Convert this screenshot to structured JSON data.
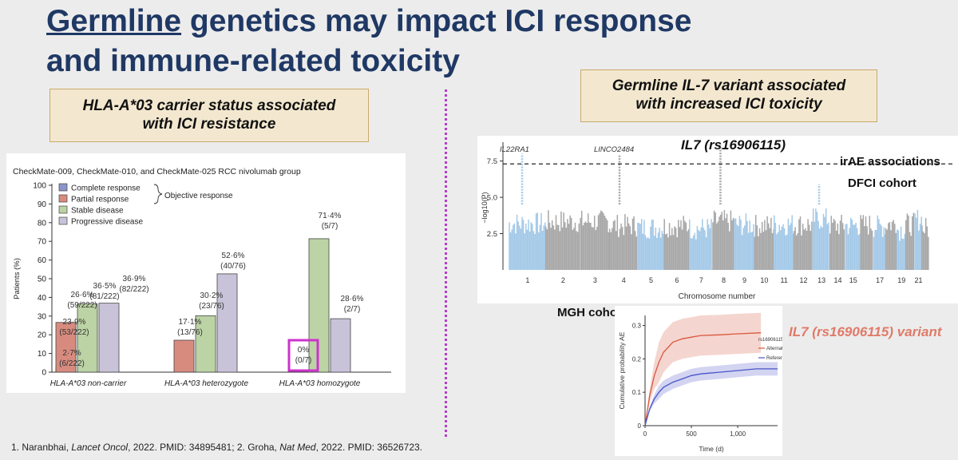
{
  "title": {
    "underlined": "Germline",
    "rest_line1": " genetics may impact ICI response",
    "line2": "and immune-related toxicity"
  },
  "left_callout": {
    "line1": "HLA-A*03 carrier status associated",
    "line2": "with ICI resistance"
  },
  "right_callout": {
    "line1": "Germline IL-7 variant associated",
    "line2": "with increased ICI toxicity"
  },
  "footnote": {
    "p1": "1. Naranbhai, ",
    "j1": "Lancet Oncol",
    "p2": ", 2022. PMID: 34895481; 2. Groha, ",
    "j2": "Nat Med",
    "p3": ", 2022. PMID: 36526723."
  },
  "right_labels": {
    "il7_title": "IL7 (rs16906115)",
    "irae": "irAE associations",
    "dfci": "DFCI cohort",
    "mgh": "MGH cohort",
    "variant": "IL7 (rs16906115) variant"
  },
  "colors": {
    "title": "#1f3864",
    "complete": "#8c95c9",
    "partial": "#d78b7f",
    "stable": "#bcd3a5",
    "progressive": "#c9c3da",
    "highlight": "#cc33cc",
    "manhattan_blue": "#a3c9e8",
    "manhattan_gray": "#a7a7a7",
    "alt": "#d9583f",
    "ref": "#4a55c8"
  },
  "chart_data": [
    {
      "type": "bar",
      "title": "CheckMate-009, CheckMate-010, and CheckMate-025 RCC nivolumab group",
      "ylabel": "Patients (%)",
      "ylim": [
        0,
        100
      ],
      "yticks": [
        "0",
        "10",
        "20",
        "30",
        "40",
        "50",
        "60",
        "70",
        "80",
        "90",
        "100"
      ],
      "categories": [
        "HLA-A*03 non-carrier",
        "HLA-A*03 heterozygote",
        "HLA-A*03 homozygote"
      ],
      "legend_group_label": "Objective response",
      "series": [
        {
          "name": "Complete response",
          "values": [
            2.7,
            0,
            0
          ],
          "labels": [
            [
              "2·7%",
              "(6/222)"
            ],
            [],
            []
          ]
        },
        {
          "name": "Partial response",
          "values": [
            26.6,
            17.1,
            0
          ],
          "labels": [
            [
              "26·6%",
              "(59/222)"
            ],
            [
              "17·1%",
              "(13/76)"
            ],
            [
              "0%",
              "(0/7)"
            ]
          ]
        },
        {
          "name": "Stable disease",
          "values": [
            36.5,
            30.2,
            71.4
          ],
          "labels": [
            [
              "36·5%",
              "(81/222)"
            ],
            [
              "30·2%",
              "(23/76)"
            ],
            [
              "71·4%",
              "(5/7)"
            ]
          ]
        },
        {
          "name": "Progressive disease",
          "values": [
            36.9,
            52.6,
            28.6
          ],
          "labels": [
            [
              "36·9%",
              "(82/222)"
            ],
            [
              "52·6%",
              "(40/76)"
            ],
            [
              "28·6%",
              "(2/7)"
            ]
          ]
        }
      ],
      "extra_label": [
        "23·9%",
        "(53/222)"
      ]
    },
    {
      "type": "scatter",
      "subtype": "manhattan",
      "ylabel": "−log10(P)",
      "xlabel": "Chromosome number",
      "yticks": [
        "2.5",
        "5.0",
        "7.5"
      ],
      "ylim": [
        0,
        8.8
      ],
      "chromosome_labels": [
        "1",
        "2",
        "3",
        "4",
        "5",
        "6",
        "7",
        "8",
        "9",
        "10",
        "11",
        "12",
        "13",
        "14",
        "15",
        "17",
        "19",
        "21"
      ],
      "threshold": 7.3,
      "annotations": [
        "IL22RA1",
        "LINCO2484"
      ],
      "peaks": [
        {
          "chromosome": 1,
          "value": 8.0
        },
        {
          "chromosome": 4,
          "value": 7.9
        },
        {
          "chromosome": 8,
          "value": 8.6
        },
        {
          "chromosome": 13,
          "value": 5.9
        }
      ]
    },
    {
      "type": "line",
      "subtype": "cumulative-incidence",
      "xlabel": "Time (d)",
      "ylabel": "Cumulative probability AE",
      "xticks": [
        "0",
        "500",
        "1,000"
      ],
      "yticks": [
        "0",
        "0.1",
        "0.2",
        "0.3"
      ],
      "xlim": [
        0,
        1430
      ],
      "ylim": [
        0,
        0.33
      ],
      "legend_title": "rs16906115",
      "series": [
        {
          "name": "Alternative",
          "x": [
            0,
            50,
            100,
            150,
            200,
            300,
            400,
            500,
            600,
            800,
            1000,
            1250
          ],
          "y": [
            0,
            0.09,
            0.15,
            0.19,
            0.22,
            0.25,
            0.26,
            0.265,
            0.27,
            0.272,
            0.275,
            0.278
          ]
        },
        {
          "name": "Reference",
          "x": [
            0,
            50,
            100,
            150,
            200,
            300,
            400,
            500,
            600,
            800,
            1000,
            1200,
            1430
          ],
          "y": [
            0,
            0.05,
            0.08,
            0.1,
            0.115,
            0.13,
            0.14,
            0.15,
            0.155,
            0.16,
            0.165,
            0.17,
            0.17
          ]
        }
      ]
    }
  ]
}
